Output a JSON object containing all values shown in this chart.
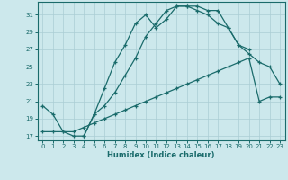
{
  "xlabel": "Humidex (Indice chaleur)",
  "xlim": [
    -0.5,
    23.5
  ],
  "ylim": [
    16.5,
    32.5
  ],
  "yticks": [
    17,
    19,
    21,
    23,
    25,
    27,
    29,
    31
  ],
  "xticks": [
    0,
    1,
    2,
    3,
    4,
    5,
    6,
    7,
    8,
    9,
    10,
    11,
    12,
    13,
    14,
    15,
    16,
    17,
    18,
    19,
    20,
    21,
    22,
    23
  ],
  "bg_color": "#cce8ec",
  "grid_color": "#aacdd4",
  "line_color": "#1a6b6b",
  "line1_x": [
    0,
    1,
    2,
    3,
    4,
    5,
    6,
    7,
    8,
    9,
    10,
    11,
    12,
    13,
    14,
    15,
    16,
    17,
    18,
    19,
    20
  ],
  "line1_y": [
    20.5,
    19.5,
    17.5,
    17.0,
    17.0,
    19.5,
    22.5,
    25.5,
    27.5,
    30.0,
    31.0,
    29.5,
    30.5,
    32.0,
    32.0,
    32.0,
    31.5,
    31.5,
    29.5,
    27.5,
    27.0
  ],
  "line2_x": [
    4,
    5,
    6,
    7,
    8,
    9,
    10,
    11,
    12,
    13,
    14,
    15,
    16,
    17,
    18,
    19,
    20,
    21,
    22,
    23
  ],
  "line2_y": [
    17.0,
    19.5,
    20.5,
    22.0,
    24.0,
    26.0,
    28.5,
    30.0,
    31.5,
    32.0,
    32.0,
    31.5,
    31.0,
    30.0,
    29.5,
    27.5,
    26.5,
    25.5,
    25.0,
    23.0
  ],
  "line3_x": [
    0,
    1,
    2,
    3,
    4,
    5,
    6,
    7,
    8,
    9,
    10,
    11,
    12,
    13,
    14,
    15,
    16,
    17,
    18,
    19,
    20,
    21,
    22,
    23
  ],
  "line3_y": [
    17.5,
    17.5,
    17.5,
    17.5,
    18.0,
    18.5,
    19.0,
    19.5,
    20.0,
    20.5,
    21.0,
    21.5,
    22.0,
    22.5,
    23.0,
    23.5,
    24.0,
    24.5,
    25.0,
    25.5,
    26.0,
    21.0,
    21.5,
    21.5
  ]
}
